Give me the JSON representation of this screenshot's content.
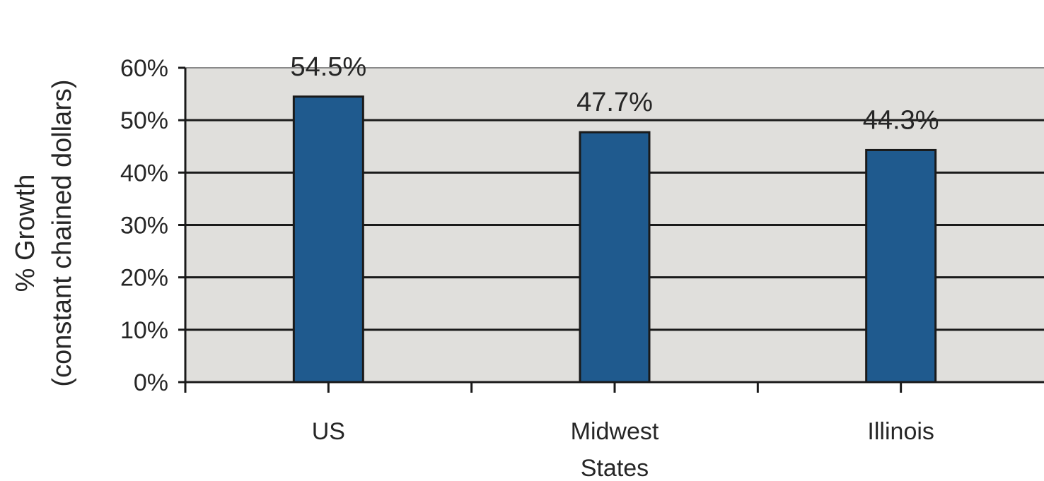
{
  "chart_data": {
    "type": "bar",
    "categories": [
      "US",
      "Midwest States",
      "Illinois"
    ],
    "category_label_lines": [
      [
        "US"
      ],
      [
        "Midwest",
        "States"
      ],
      [
        "Illinois"
      ]
    ],
    "values": [
      54.5,
      47.7,
      44.3
    ],
    "data_labels": [
      "54.5%",
      "47.7%",
      "44.3%"
    ],
    "ylabel_lines": [
      "% Growth",
      "(constant chained dollars)"
    ],
    "xlabel": "",
    "ylim": [
      0,
      60
    ],
    "yticks": [
      0,
      10,
      20,
      30,
      40,
      50,
      60
    ],
    "ytick_labels": [
      "0%",
      "10%",
      "20%",
      "30%",
      "40%",
      "50%",
      "60%"
    ],
    "grid": true,
    "legend": false,
    "colors": {
      "bar": "#1f5a8e",
      "bar_edge": "#1a1a1a",
      "plot_background": "#e0dfdc",
      "gridline": "#1a1a1a",
      "top_border": "#8a8a8a"
    }
  }
}
